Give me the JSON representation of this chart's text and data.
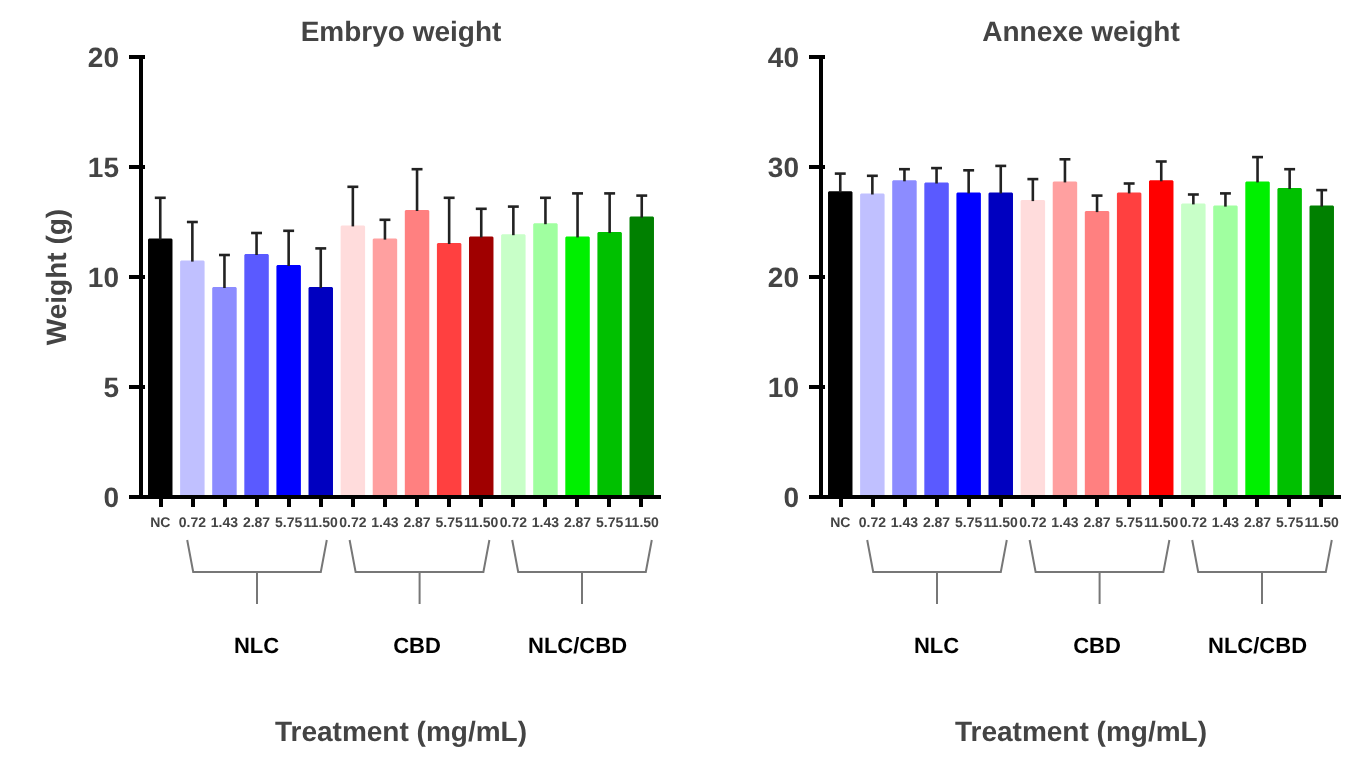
{
  "chart_data": [
    {
      "type": "bar",
      "title": "Embryo weight",
      "xlabel": "Treatment (mg/mL)",
      "ylabel": "Weight (g)",
      "categories": [
        "NC",
        "0.72",
        "1.43",
        "2.87",
        "5.75",
        "11.50",
        "0.72",
        "1.43",
        "2.87",
        "5.75",
        "11.50",
        "0.72",
        "1.43",
        "2.87",
        "5.75",
        "11.50"
      ],
      "values": [
        11.7,
        10.7,
        9.5,
        11.0,
        10.5,
        9.5,
        12.3,
        11.7,
        13.0,
        11.5,
        11.8,
        11.9,
        12.4,
        11.8,
        12.0,
        12.7
      ],
      "errors": [
        1.9,
        1.8,
        1.5,
        1.0,
        1.6,
        1.8,
        1.8,
        0.9,
        1.9,
        2.1,
        1.3,
        1.3,
        1.2,
        2.0,
        1.8,
        1.0
      ],
      "colors": [
        "#000000",
        "#c0c0ff",
        "#8c8cff",
        "#5a5aff",
        "#0000ff",
        "#0000c0",
        "#ffdcdc",
        "#ffa0a0",
        "#ff8080",
        "#ff4040",
        "#a00000",
        "#c8ffc8",
        "#a0ffa0",
        "#00f000",
        "#00c000",
        "#008000"
      ],
      "ylim": [
        0,
        20
      ],
      "yticks": [
        0,
        5,
        10,
        15,
        20
      ],
      "annotations": [
        "NLC",
        "CBD",
        "NLC/CBD"
      ]
    },
    {
      "type": "bar",
      "title": "Annexe weight",
      "xlabel": "Treatment (mg/mL)",
      "categories": [
        "NC",
        "0.72",
        "1.43",
        "2.87",
        "5.75",
        "11.50",
        "0.72",
        "1.43",
        "2.87",
        "5.75",
        "11.50",
        "0.72",
        "1.43",
        "2.87",
        "5.75",
        "11.50"
      ],
      "values": [
        27.7,
        27.5,
        28.7,
        28.5,
        27.6,
        27.6,
        26.9,
        28.6,
        25.9,
        27.6,
        28.7,
        26.6,
        26.4,
        28.6,
        28.0,
        26.4
      ],
      "errors": [
        1.7,
        1.7,
        1.1,
        1.4,
        2.1,
        2.5,
        2.0,
        2.1,
        1.5,
        0.9,
        1.8,
        0.9,
        1.2,
        2.3,
        1.8,
        1.5
      ],
      "colors": [
        "#000000",
        "#c0c0ff",
        "#8c8cff",
        "#5a5aff",
        "#0000ff",
        "#0000c0",
        "#ffdcdc",
        "#ffa0a0",
        "#ff8080",
        "#ff4040",
        "#ff0000",
        "#c8ffc8",
        "#a0ffa0",
        "#00f000",
        "#00c000",
        "#008000"
      ],
      "ylim": [
        0,
        40
      ],
      "yticks": [
        0,
        10,
        20,
        30,
        40
      ],
      "annotations": [
        "NLC",
        "CBD",
        "NLC/CBD"
      ]
    }
  ]
}
